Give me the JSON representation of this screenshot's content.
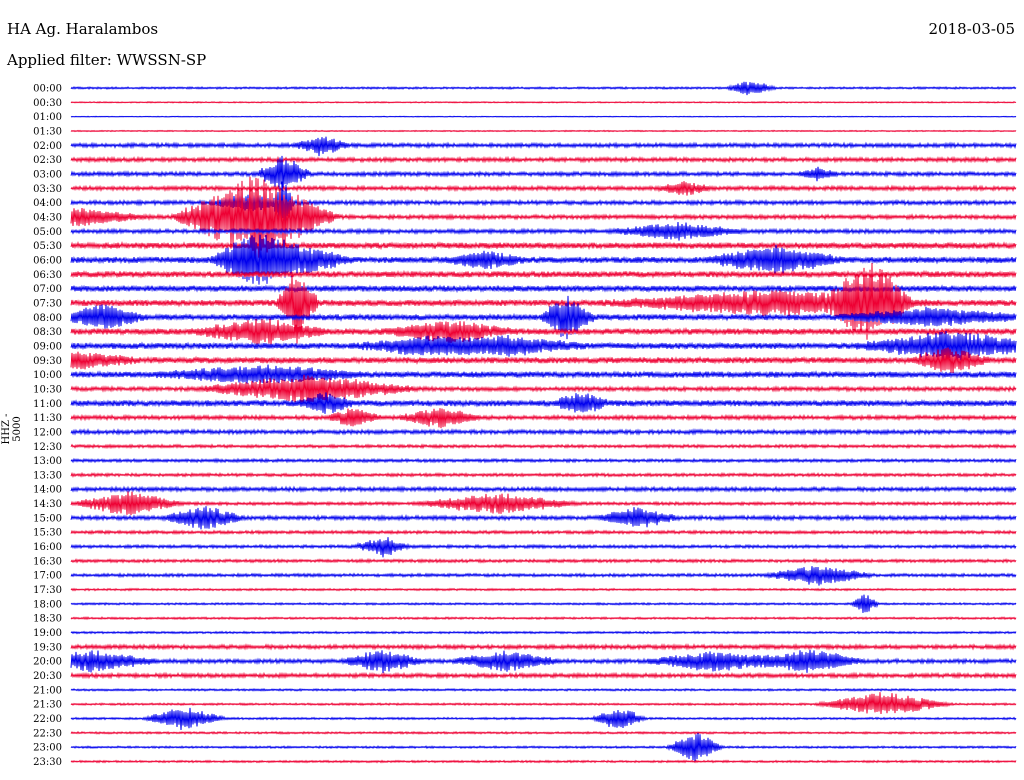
{
  "header": {
    "station": "HA Ag. Haralambos",
    "date": "2018-03-05",
    "filter": "Applied filter: WWSSN-SP",
    "channel_label": "HHZ - 5000"
  },
  "colors": {
    "even": "#0000ee",
    "odd": "#ee0033"
  },
  "chart_data": {
    "type": "line",
    "title": "HA Ag. Haralambos",
    "subtitle": "Applied filter: WWSSN-SP",
    "ylabel": "HHZ - 5000",
    "grid": false,
    "rows": [
      "00:00",
      "00:30",
      "01:00",
      "01:30",
      "02:00",
      "02:30",
      "03:00",
      "03:30",
      "04:00",
      "04:30",
      "05:00",
      "05:30",
      "06:00",
      "06:30",
      "07:00",
      "07:30",
      "08:00",
      "08:30",
      "09:00",
      "09:30",
      "10:00",
      "10:30",
      "11:00",
      "11:30",
      "12:00",
      "12:30",
      "13:00",
      "13:30",
      "14:00",
      "14:30",
      "15:00",
      "15:30",
      "16:00",
      "16:30",
      "17:00",
      "17:30",
      "18:00",
      "18:30",
      "19:00",
      "19:30",
      "20:00",
      "20:30",
      "21:00",
      "21:30",
      "22:00",
      "22:30",
      "23:00",
      "23:30"
    ],
    "noise": [
      1,
      0.6,
      0.4,
      0.6,
      2,
      2,
      2,
      2,
      2,
      2,
      2,
      3,
      3,
      3,
      3,
      3,
      3,
      3,
      3,
      3,
      3,
      2,
      3,
      2,
      2,
      1.5,
      1.5,
      1.5,
      2,
      1.5,
      2,
      1.5,
      1.5,
      1.5,
      1.5,
      1,
      1,
      1,
      1,
      2,
      2,
      2,
      1,
      1,
      1,
      1,
      1,
      1
    ],
    "events": [
      [
        0,
        0.72,
        0.018,
        8
      ],
      [
        4,
        0.265,
        0.02,
        10
      ],
      [
        6,
        0.225,
        0.02,
        18
      ],
      [
        6,
        0.79,
        0.015,
        6
      ],
      [
        7,
        0.65,
        0.02,
        6
      ],
      [
        8,
        0.19,
        0.03,
        8
      ],
      [
        8,
        0.225,
        0.008,
        22
      ],
      [
        9,
        0.01,
        0.05,
        8
      ],
      [
        9,
        0.195,
        0.06,
        42
      ],
      [
        10,
        0.64,
        0.05,
        8
      ],
      [
        12,
        0.19,
        0.03,
        18
      ],
      [
        12,
        0.225,
        0.05,
        18
      ],
      [
        12,
        0.44,
        0.03,
        8
      ],
      [
        12,
        0.745,
        0.05,
        14
      ],
      [
        15,
        0.24,
        0.015,
        40
      ],
      [
        15,
        0.74,
        0.12,
        12
      ],
      [
        15,
        0.845,
        0.03,
        40
      ],
      [
        16,
        0.035,
        0.03,
        12
      ],
      [
        16,
        0.525,
        0.02,
        22
      ],
      [
        16,
        0.91,
        0.07,
        8
      ],
      [
        17,
        0.2,
        0.05,
        12
      ],
      [
        17,
        0.4,
        0.05,
        10
      ],
      [
        18,
        0.37,
        0.05,
        8
      ],
      [
        18,
        0.46,
        0.06,
        9
      ],
      [
        18,
        0.93,
        0.07,
        14
      ],
      [
        19,
        0.0,
        0.05,
        8
      ],
      [
        19,
        0.93,
        0.03,
        12
      ],
      [
        20,
        0.2,
        0.08,
        8
      ],
      [
        21,
        0.25,
        0.08,
        14
      ],
      [
        22,
        0.27,
        0.02,
        10
      ],
      [
        22,
        0.54,
        0.02,
        12
      ],
      [
        23,
        0.3,
        0.02,
        10
      ],
      [
        23,
        0.39,
        0.03,
        10
      ],
      [
        29,
        0.06,
        0.04,
        12
      ],
      [
        29,
        0.45,
        0.06,
        10
      ],
      [
        30,
        0.14,
        0.03,
        12
      ],
      [
        30,
        0.6,
        0.03,
        10
      ],
      [
        32,
        0.33,
        0.02,
        10
      ],
      [
        34,
        0.79,
        0.04,
        10
      ],
      [
        36,
        0.84,
        0.01,
        10
      ],
      [
        40,
        0.02,
        0.05,
        10
      ],
      [
        40,
        0.33,
        0.03,
        12
      ],
      [
        40,
        0.46,
        0.04,
        10
      ],
      [
        40,
        0.68,
        0.05,
        10
      ],
      [
        40,
        0.78,
        0.04,
        12
      ],
      [
        43,
        0.86,
        0.05,
        12
      ],
      [
        44,
        0.12,
        0.03,
        12
      ],
      [
        44,
        0.58,
        0.02,
        12
      ],
      [
        46,
        0.66,
        0.02,
        16
      ]
    ]
  }
}
